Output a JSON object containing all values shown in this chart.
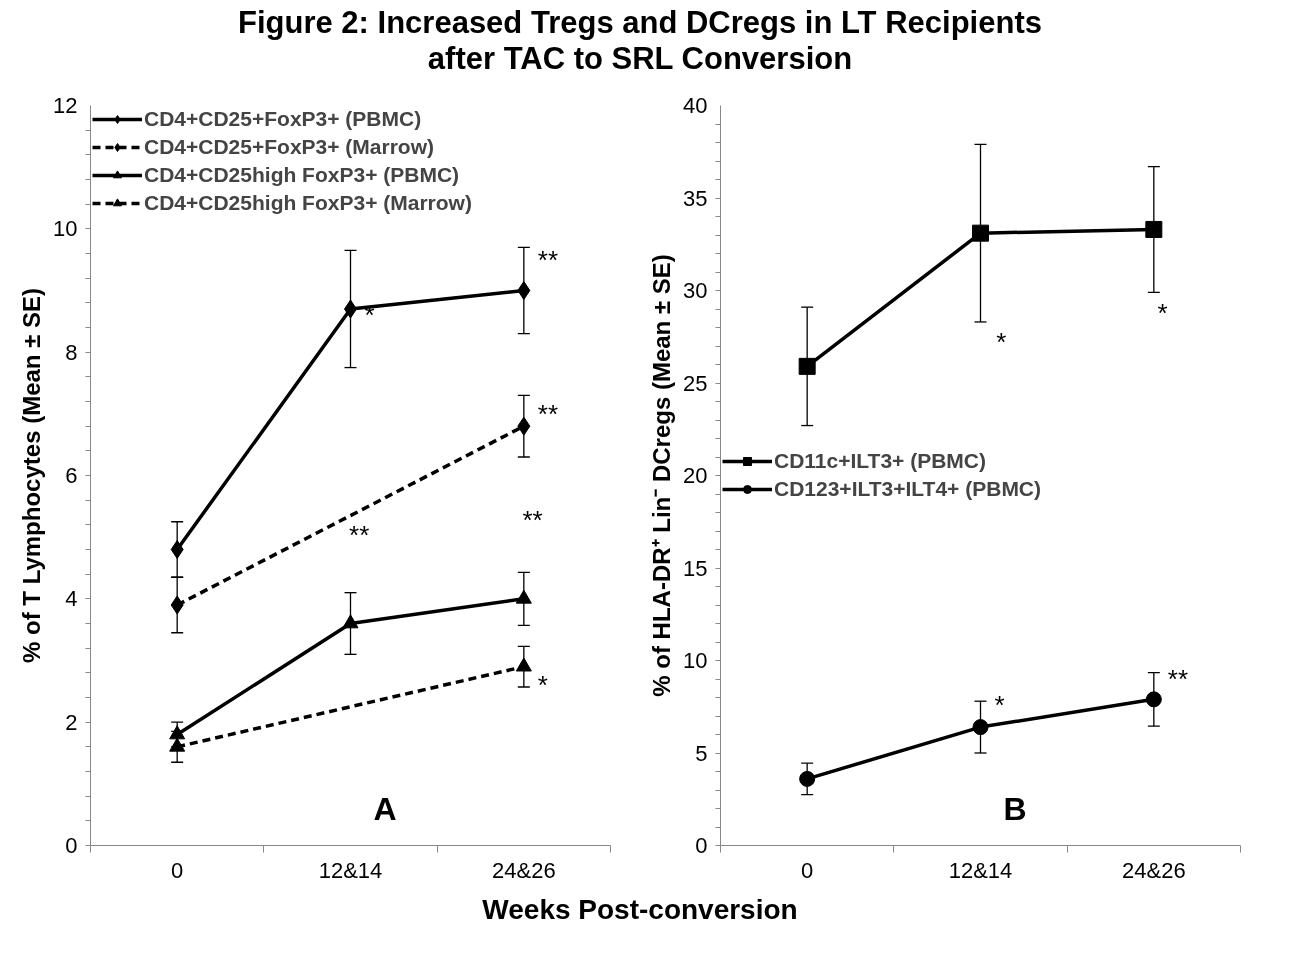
{
  "chart_data": [
    {
      "type": "line",
      "title": "Figure 2: Increased Tregs and DCregs in LT Recipients\nafter TAC to SRL Conversion",
      "xlabel": "Weeks Post-conversion",
      "ylabel": "% of T Lymphocytes (Mean ± SE)",
      "categories": [
        "0",
        "12&14",
        "24&26"
      ],
      "ylim": [
        0,
        12
      ],
      "yticks": [
        0,
        2,
        4,
        6,
        8,
        10,
        12
      ],
      "grid": false,
      "legend": "top left",
      "series": [
        {
          "name": "CD4+CD25+FoxP3+ (PBMC)",
          "color": "#000000",
          "marker": "diamond",
          "line_style": "solid",
          "values": [
            4.8,
            8.7,
            9.0
          ],
          "errors": [
            0.45,
            0.95,
            0.7
          ]
        },
        {
          "name": "CD4+CD25+FoxP3+ (Marrow)",
          "color": "#000000",
          "marker": "diamond",
          "line_style": "dashed",
          "values": [
            3.9,
            null,
            6.8
          ],
          "errors": [
            0.45,
            null,
            0.5
          ]
        },
        {
          "name": "CD4+CD25high FoxP3+ (PBMC)",
          "color": "#000000",
          "marker": "triangle",
          "line_style": "solid",
          "values": [
            1.8,
            3.6,
            4.0
          ],
          "errors": [
            0.2,
            0.5,
            0.43
          ]
        },
        {
          "name": "CD4+CD25high FoxP3+ (Marrow)",
          "color": "#000000",
          "marker": "triangle",
          "line_style": "dashed",
          "values": [
            1.6,
            null,
            2.9
          ],
          "errors": [
            0.25,
            null,
            0.33
          ]
        }
      ],
      "annotations": [
        {
          "text": "*",
          "x": "12&14",
          "y": 8.6
        },
        {
          "text": "**",
          "x": "24&26",
          "y": 9.5
        },
        {
          "text": "**",
          "x": "24&26",
          "y": 7.0
        },
        "**",
        "**",
        {
          "text": "*",
          "x": "24&26",
          "y": 2.6
        },
        "A"
      ]
    },
    {
      "type": "line",
      "ylabel": "% of HLA-DR⁺ Lin⁻ DCregs (Mean ± SE)",
      "categories": [
        "0",
        "12&14",
        "24&26"
      ],
      "ylim": [
        0,
        40
      ],
      "yticks": [
        0,
        5,
        10,
        15,
        20,
        25,
        30,
        35,
        40
      ],
      "grid": false,
      "legend": "left",
      "series": [
        {
          "name": "CD11c+ILT3+ (PBMC)",
          "color": "#000000",
          "marker": "square",
          "line_style": "solid",
          "values": [
            25.9,
            33.1,
            33.3
          ],
          "errors": [
            3.2,
            4.8,
            3.4
          ]
        },
        {
          "name": "CD123+ILT3+ILT4+ (PBMC)",
          "color": "#000000",
          "marker": "circle",
          "line_style": "solid",
          "values": [
            3.6,
            6.4,
            7.9
          ],
          "errors": [
            0.85,
            1.4,
            1.45
          ]
        }
      ],
      "annotations": [
        "*",
        "*",
        {
          "text": "*",
          "x": "12&14",
          "y": 7.6
        },
        {
          "text": "**",
          "x": "24&26",
          "y": 9.0
        },
        "B"
      ]
    }
  ]
}
